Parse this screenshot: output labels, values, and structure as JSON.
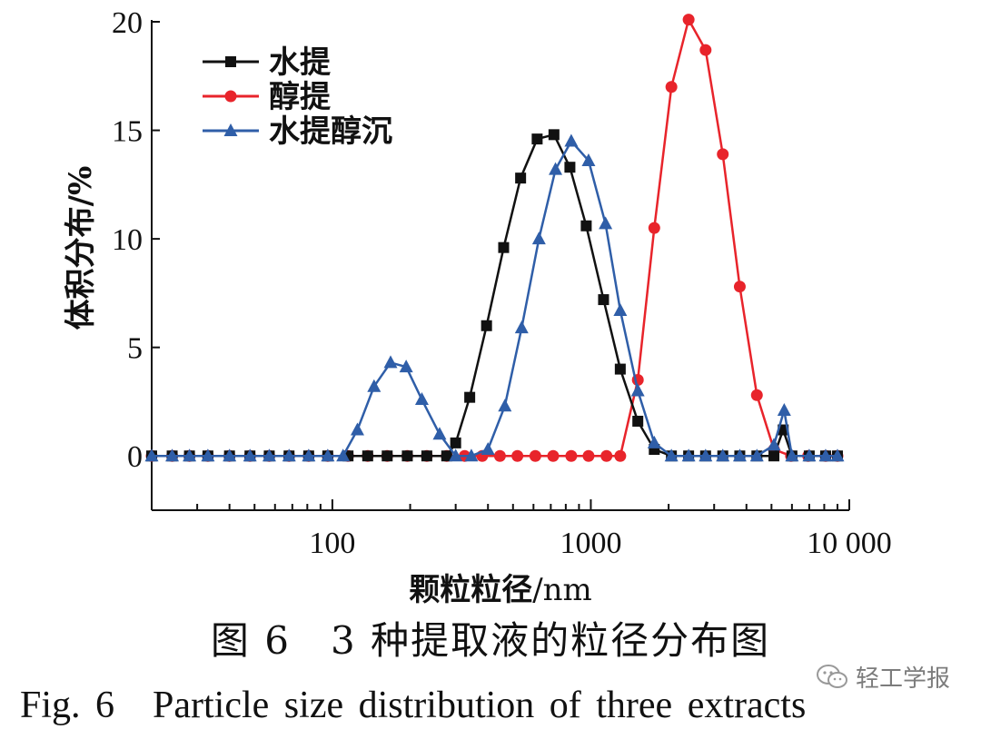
{
  "chart_data": {
    "type": "line",
    "xscale": "log",
    "xlim": [
      20,
      10000
    ],
    "ylim": [
      -2.5,
      20
    ],
    "xlabel": "颗粒粒径",
    "xlabel_unit": "/nm",
    "ylabel": "体积分布/%",
    "yticks": [
      0,
      5,
      10,
      15,
      20
    ],
    "xticks": [
      100,
      1000,
      10000
    ],
    "xtick_labels": [
      "100",
      "1000",
      "10 000"
    ],
    "legend_position": "top-left",
    "series": [
      {
        "name": "水提",
        "color": "#111111",
        "marker": "square",
        "x": [
          20,
          24,
          28,
          33,
          40,
          48,
          57,
          68,
          81,
          96,
          115,
          137,
          163,
          195,
          232,
          277,
          300,
          340,
          395,
          460,
          535,
          620,
          720,
          830,
          960,
          1120,
          1300,
          1520,
          1760,
          2050,
          2390,
          2780,
          3240,
          3770,
          4390,
          5110,
          5550,
          6000,
          7000,
          8100,
          9000
        ],
        "y": [
          0,
          0,
          0,
          0,
          0,
          0,
          0,
          0,
          0,
          0,
          0,
          0,
          0,
          0,
          0,
          0,
          0.6,
          2.7,
          6.0,
          9.6,
          12.8,
          14.6,
          14.8,
          13.3,
          10.6,
          7.2,
          4.0,
          1.6,
          0.3,
          0,
          0,
          0,
          0,
          0,
          0,
          0,
          1.2,
          0,
          0,
          0,
          0
        ]
      },
      {
        "name": "醇提",
        "color": "#e8242b",
        "marker": "circle",
        "x": [
          20,
          24,
          28,
          33,
          40,
          48,
          57,
          68,
          81,
          96,
          115,
          137,
          163,
          195,
          232,
          277,
          325,
          380,
          445,
          520,
          610,
          715,
          840,
          980,
          1150,
          1300,
          1520,
          1760,
          2050,
          2390,
          2780,
          3240,
          3770,
          4390,
          5110,
          5950,
          6930,
          8100,
          9000
        ],
        "y": [
          0,
          0,
          0,
          0,
          0,
          0,
          0,
          0,
          0,
          0,
          0,
          0,
          0,
          0,
          0,
          0,
          0,
          0,
          0,
          0,
          0,
          0,
          0,
          0,
          0,
          0,
          3.5,
          10.5,
          17.0,
          20.1,
          18.7,
          13.9,
          7.8,
          2.8,
          0.3,
          0,
          0,
          0,
          0
        ]
      },
      {
        "name": "水提醇沉",
        "color": "#2f5ea8",
        "marker": "triangle",
        "x": [
          20,
          24,
          28,
          33,
          40,
          48,
          57,
          68,
          81,
          96,
          110,
          125,
          145,
          168,
          193,
          222,
          260,
          300,
          345,
          400,
          465,
          540,
          630,
          730,
          840,
          980,
          1140,
          1300,
          1520,
          1760,
          2050,
          2390,
          2780,
          3240,
          3770,
          4390,
          5110,
          5600,
          6000,
          7000,
          8100,
          9000
        ],
        "y": [
          0,
          0,
          0,
          0,
          0,
          0,
          0,
          0,
          0,
          0,
          0,
          1.2,
          3.2,
          4.3,
          4.1,
          2.6,
          1.0,
          0,
          0,
          0.3,
          2.3,
          5.9,
          10.0,
          13.2,
          14.5,
          13.6,
          10.7,
          6.7,
          3.0,
          0.6,
          0,
          0,
          0,
          0,
          0,
          0,
          0.5,
          2.1,
          0,
          0,
          0,
          0
        ]
      }
    ]
  },
  "captions": {
    "cn": "图 6　3 种提取液的粒径分布图",
    "en": "Fig. 6　Particle size distribution of three extracts"
  },
  "watermark": {
    "text": "轻工学报",
    "icon": "wechat-icon"
  }
}
